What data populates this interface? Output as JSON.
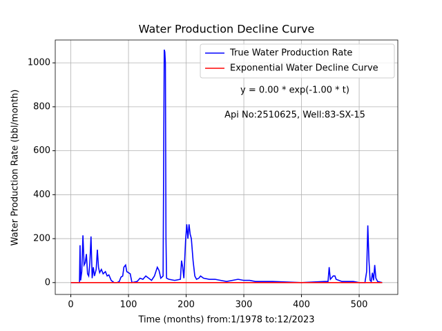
{
  "chart_data": {
    "type": "line",
    "title": "Water Production Decline Curve",
    "xlabel": "Time (months) from:1/1978 to:12/2023",
    "ylabel": "Water Production Rate (bbl/month)",
    "annotations": [
      "y = 0.00 * exp(-1.00 * t)",
      "Api No:2510625, Well:83-SX-15"
    ],
    "xlim": [
      -27,
      567
    ],
    "ylim": [
      -54,
      1104
    ],
    "xticks": [
      0,
      100,
      200,
      300,
      400,
      500
    ],
    "yticks": [
      0,
      200,
      400,
      600,
      800,
      1000
    ],
    "grid": true,
    "legend": "upper right",
    "series": [
      {
        "name": "True Water Production Rate",
        "color": "#0000ff",
        "x": [
          0,
          10,
          15,
          16,
          17,
          19,
          21,
          23,
          25,
          27,
          29,
          31,
          33,
          35,
          37,
          39,
          41,
          44,
          46,
          48,
          50,
          53,
          56,
          60,
          63,
          66,
          70,
          75,
          80,
          84,
          87,
          90,
          92,
          95,
          97,
          100,
          103,
          106,
          115,
          120,
          125,
          130,
          135,
          140,
          145,
          150,
          153,
          156,
          160,
          162,
          163,
          164,
          165,
          166,
          170,
          180,
          190,
          192,
          194,
          196,
          199,
          201,
          203,
          205,
          207,
          209,
          212,
          215,
          218,
          222,
          225,
          230,
          240,
          250,
          260,
          270,
          280,
          290,
          300,
          310,
          320,
          330,
          340,
          350,
          400,
          440,
          446,
          448,
          450,
          455,
          458,
          460,
          470,
          480,
          490,
          500,
          510,
          513,
          515,
          517,
          519,
          521,
          523,
          525,
          527,
          529,
          532,
          540
        ],
        "values": [
          0,
          0,
          0,
          170,
          10,
          50,
          215,
          80,
          90,
          130,
          40,
          30,
          90,
          210,
          20,
          70,
          30,
          60,
          150,
          70,
          45,
          60,
          40,
          50,
          30,
          35,
          10,
          0,
          0,
          5,
          25,
          30,
          70,
          80,
          50,
          45,
          40,
          0,
          5,
          20,
          15,
          30,
          20,
          10,
          30,
          70,
          55,
          20,
          30,
          1060,
          1050,
          1000,
          200,
          20,
          15,
          10,
          15,
          100,
          70,
          20,
          190,
          265,
          200,
          265,
          220,
          200,
          100,
          30,
          15,
          20,
          30,
          20,
          15,
          15,
          10,
          5,
          10,
          15,
          10,
          10,
          5,
          5,
          5,
          5,
          0,
          5,
          5,
          70,
          15,
          30,
          30,
          15,
          5,
          5,
          5,
          0,
          0,
          50,
          260,
          100,
          10,
          5,
          45,
          10,
          80,
          20,
          5,
          0
        ]
      },
      {
        "name": "Exponential Water Decline Curve",
        "color": "#ff0000",
        "x": [
          0,
          540
        ],
        "values": [
          0,
          0
        ]
      }
    ]
  }
}
